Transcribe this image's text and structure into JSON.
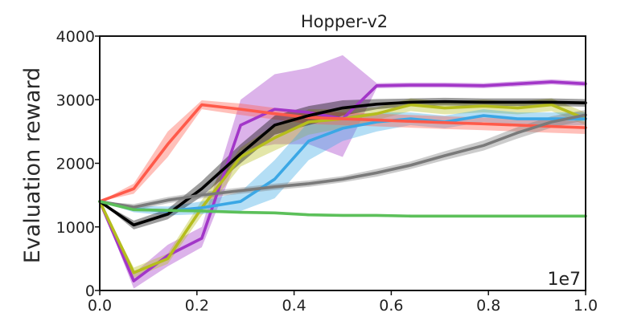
{
  "chart_data": {
    "type": "line",
    "title": "Hopper-v2",
    "xlabel": "",
    "ylabel": "Evaluation reward",
    "x_multiplier_label": "1e7",
    "xlim": [
      0.0,
      1.0
    ],
    "ylim": [
      0,
      4000
    ],
    "xticks": [
      "0.0",
      "0.2",
      "0.4",
      "0.6",
      "0.8",
      "1.0"
    ],
    "yticks": [
      "0",
      "1000",
      "2000",
      "3000",
      "4000"
    ],
    "grid": false,
    "legend": "none",
    "series": [
      {
        "color": "#a236c8",
        "x": [
          0.0,
          0.07,
          0.14,
          0.21,
          0.29,
          0.36,
          0.43,
          0.5,
          0.57,
          0.64,
          0.71,
          0.79,
          0.86,
          0.93,
          1.0
        ],
        "values": [
          1400,
          150,
          550,
          820,
          2600,
          2850,
          2800,
          2700,
          3220,
          3230,
          3230,
          3220,
          3250,
          3280,
          3250
        ],
        "lower": [
          1400,
          30,
          380,
          680,
          2200,
          2300,
          2300,
          2100,
          3180,
          3190,
          3190,
          3180,
          3210,
          3240,
          3210
        ],
        "upper": [
          1400,
          270,
          720,
          1000,
          3000,
          3400,
          3500,
          3700,
          3260,
          3270,
          3270,
          3260,
          3290,
          3320,
          3290
        ]
      },
      {
        "color": "#b5bd1d",
        "x": [
          0.0,
          0.07,
          0.14,
          0.21,
          0.29,
          0.36,
          0.43,
          0.5,
          0.57,
          0.64,
          0.71,
          0.79,
          0.86,
          0.93,
          1.0
        ],
        "values": [
          1400,
          280,
          500,
          1300,
          2100,
          2400,
          2650,
          2700,
          2780,
          2920,
          2870,
          2900,
          2870,
          2920,
          2700
        ],
        "lower": [
          1400,
          200,
          420,
          1180,
          1950,
          2200,
          2450,
          2550,
          2680,
          2820,
          2770,
          2800,
          2770,
          2820,
          2600
        ],
        "upper": [
          1400,
          360,
          580,
          1420,
          2250,
          2600,
          2850,
          2850,
          2880,
          3020,
          2970,
          3000,
          2970,
          3020,
          2800
        ]
      },
      {
        "color": "#3ba7e5",
        "x": [
          0.0,
          0.07,
          0.14,
          0.21,
          0.29,
          0.36,
          0.43,
          0.5,
          0.57,
          0.64,
          0.71,
          0.79,
          0.86,
          0.93,
          1.0
        ],
        "values": [
          1400,
          1280,
          1250,
          1300,
          1400,
          1750,
          2350,
          2550,
          2650,
          2700,
          2650,
          2750,
          2700,
          2700,
          2700
        ],
        "lower": [
          1400,
          1230,
          1180,
          1200,
          1250,
          1450,
          2050,
          2350,
          2500,
          2600,
          2550,
          2650,
          2600,
          2600,
          2600
        ],
        "upper": [
          1400,
          1330,
          1320,
          1400,
          1550,
          2050,
          2650,
          2750,
          2800,
          2800,
          2750,
          2850,
          2800,
          2800,
          2800
        ]
      },
      {
        "color": "#ff5a4a",
        "x": [
          0.0,
          0.07,
          0.14,
          0.21,
          0.29,
          0.36,
          0.43,
          0.5,
          0.57,
          0.64,
          0.71,
          0.79,
          0.86,
          0.93,
          1.0
        ],
        "values": [
          1400,
          1600,
          2300,
          2920,
          2850,
          2780,
          2720,
          2700,
          2680,
          2660,
          2640,
          2620,
          2600,
          2580,
          2560
        ],
        "lower": [
          1400,
          1520,
          2100,
          2850,
          2760,
          2690,
          2620,
          2600,
          2580,
          2560,
          2540,
          2520,
          2500,
          2480,
          2460
        ],
        "upper": [
          1400,
          1680,
          2500,
          2990,
          2940,
          2870,
          2820,
          2800,
          2780,
          2760,
          2740,
          2720,
          2700,
          2680,
          2660
        ]
      },
      {
        "color": "#000000",
        "x": [
          0.0,
          0.07,
          0.14,
          0.21,
          0.29,
          0.36,
          0.43,
          0.5,
          0.57,
          0.64,
          0.71,
          0.79,
          0.86,
          0.93,
          1.0
        ],
        "values": [
          1400,
          1030,
          1200,
          1600,
          2150,
          2600,
          2750,
          2870,
          2930,
          2960,
          2970,
          2960,
          2960,
          2960,
          2950
        ],
        "lower": [
          1400,
          960,
          1120,
          1480,
          2000,
          2450,
          2600,
          2750,
          2850,
          2900,
          2910,
          2900,
          2900,
          2900,
          2890
        ],
        "upper": [
          1400,
          1100,
          1280,
          1720,
          2300,
          2750,
          2900,
          2990,
          3010,
          3020,
          3030,
          3020,
          3020,
          3020,
          3010
        ]
      },
      {
        "color": "#7a7a7a",
        "x": [
          0.0,
          0.07,
          0.14,
          0.21,
          0.29,
          0.36,
          0.43,
          0.5,
          0.57,
          0.64,
          0.71,
          0.79,
          0.86,
          0.93,
          1.0
        ],
        "values": [
          1400,
          1310,
          1420,
          1500,
          1570,
          1630,
          1680,
          1750,
          1850,
          1970,
          2120,
          2280,
          2480,
          2650,
          2760
        ],
        "lower": [
          1400,
          1260,
          1370,
          1450,
          1520,
          1580,
          1630,
          1700,
          1790,
          1910,
          2050,
          2200,
          2390,
          2560,
          2680
        ],
        "upper": [
          1400,
          1360,
          1470,
          1550,
          1620,
          1680,
          1730,
          1800,
          1910,
          2030,
          2190,
          2360,
          2570,
          2740,
          2840
        ]
      },
      {
        "color": "#5cc05a",
        "x": [
          0.0,
          0.07,
          0.14,
          0.21,
          0.29,
          0.36,
          0.43,
          0.5,
          0.57,
          0.64,
          0.71,
          0.79,
          0.86,
          0.93,
          1.0
        ],
        "values": [
          1400,
          1270,
          1260,
          1250,
          1230,
          1220,
          1190,
          1180,
          1180,
          1170,
          1170,
          1170,
          1170,
          1170,
          1170
        ],
        "lower": [
          1400,
          1250,
          1240,
          1230,
          1210,
          1200,
          1170,
          1160,
          1160,
          1150,
          1150,
          1150,
          1150,
          1150,
          1150
        ],
        "upper": [
          1400,
          1290,
          1280,
          1270,
          1250,
          1240,
          1210,
          1200,
          1200,
          1190,
          1190,
          1190,
          1190,
          1190,
          1190
        ]
      }
    ]
  }
}
